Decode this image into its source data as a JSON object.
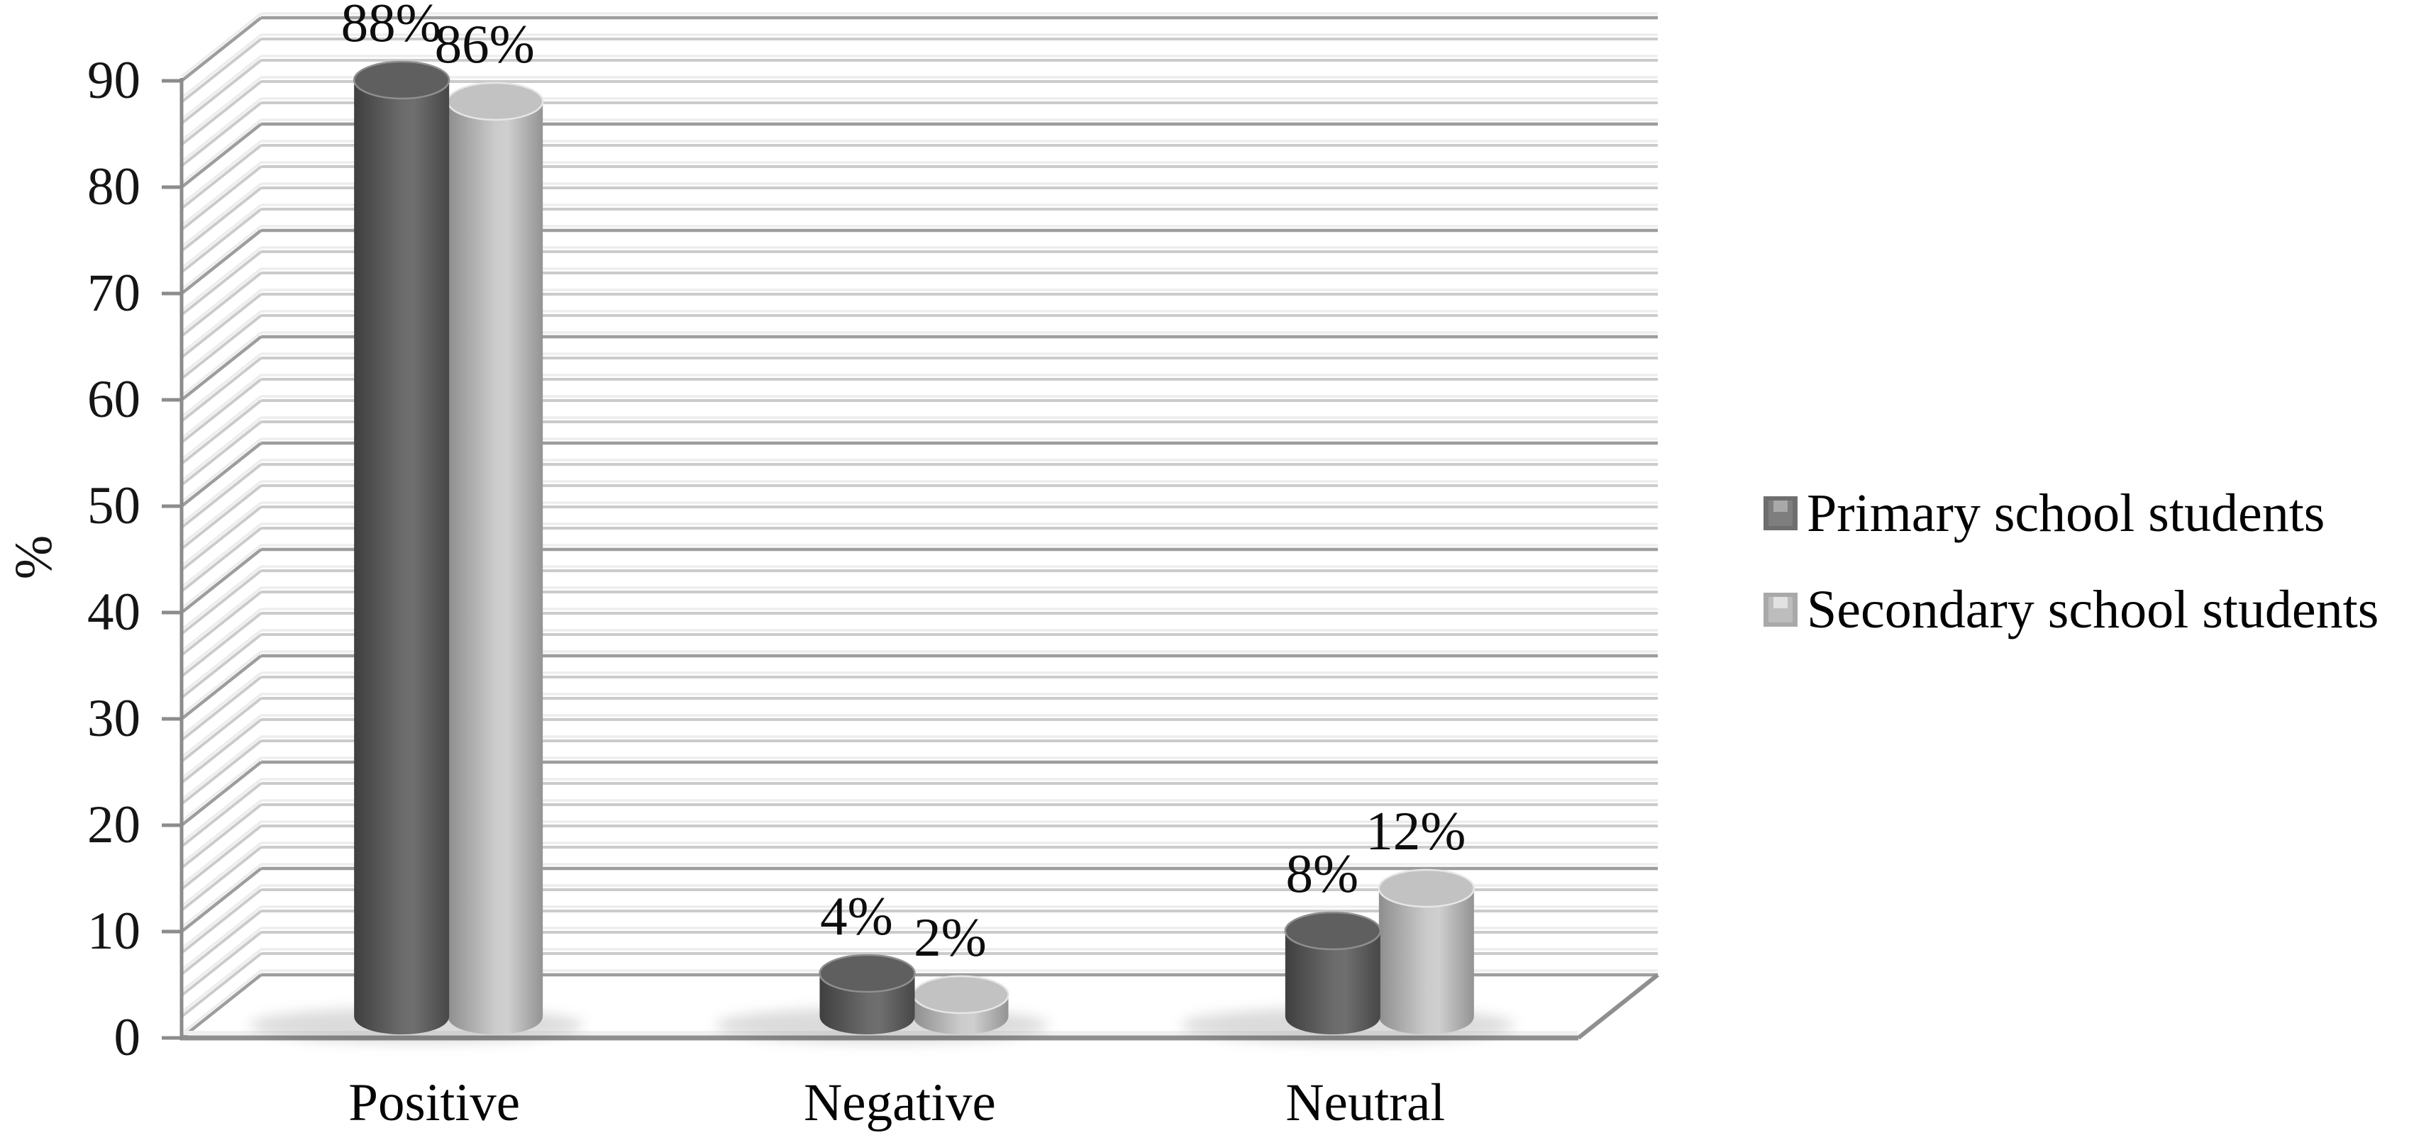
{
  "chart_data": {
    "type": "bar",
    "subtype": "3d-cylinder-column",
    "title": "",
    "categories": [
      "Positive",
      "Negative",
      "Neutral"
    ],
    "series": [
      {
        "name": "Primary school students",
        "values": [
          88,
          4,
          8
        ],
        "labels": [
          "88%",
          "4%",
          "8%"
        ],
        "gradient": [
          {
            "offset": 0,
            "color": "#3f3f3f"
          },
          {
            "offset": 0.5,
            "color": "#6b6b6b"
          },
          {
            "offset": 0.63,
            "color": "#6f6f6f"
          },
          {
            "offset": 1,
            "color": "#474747"
          }
        ],
        "top_fill": "#5f5f5f",
        "top_stroke": "#8f8f8f",
        "marker": {
          "frame": "#6e6e6e",
          "face": "#7e7e7e",
          "highlight": "#a9a9a9"
        }
      },
      {
        "name": "Secondary school students",
        "values": [
          86,
          2,
          12
        ],
        "labels": [
          "86%",
          "2%",
          "12%"
        ],
        "gradient": [
          {
            "offset": 0,
            "color": "#8e8e8e"
          },
          {
            "offset": 0.5,
            "color": "#cbcbcb"
          },
          {
            "offset": 0.63,
            "color": "#cfcfcf"
          },
          {
            "offset": 1,
            "color": "#939393"
          }
        ],
        "top_fill": "#c2c2c2",
        "top_stroke": "#e6e6e6",
        "marker": {
          "frame": "#a9a9a9",
          "face": "#bdbdbd",
          "highlight": "#e2e2e2"
        }
      }
    ],
    "xlabel": "",
    "ylabel": "%",
    "ylim": [
      0,
      90
    ],
    "ytick_step": 10,
    "minor_grid_step": 2,
    "yticks": [
      "0",
      "10",
      "20",
      "30",
      "40",
      "50",
      "60",
      "70",
      "80",
      "90"
    ],
    "grid": true,
    "legend_position": "right",
    "colors": {
      "grid_major": "#9d9d9d",
      "grid_minor": "#cbcbcb",
      "grid_highlight": "#ededed",
      "axis": "#8c8c8c",
      "floor_edge": "#8f8f8f",
      "floor_highlight": "#f0f0f0",
      "text": "#151515",
      "background": "#ffffff",
      "shadow_opacity": 0.14
    }
  }
}
